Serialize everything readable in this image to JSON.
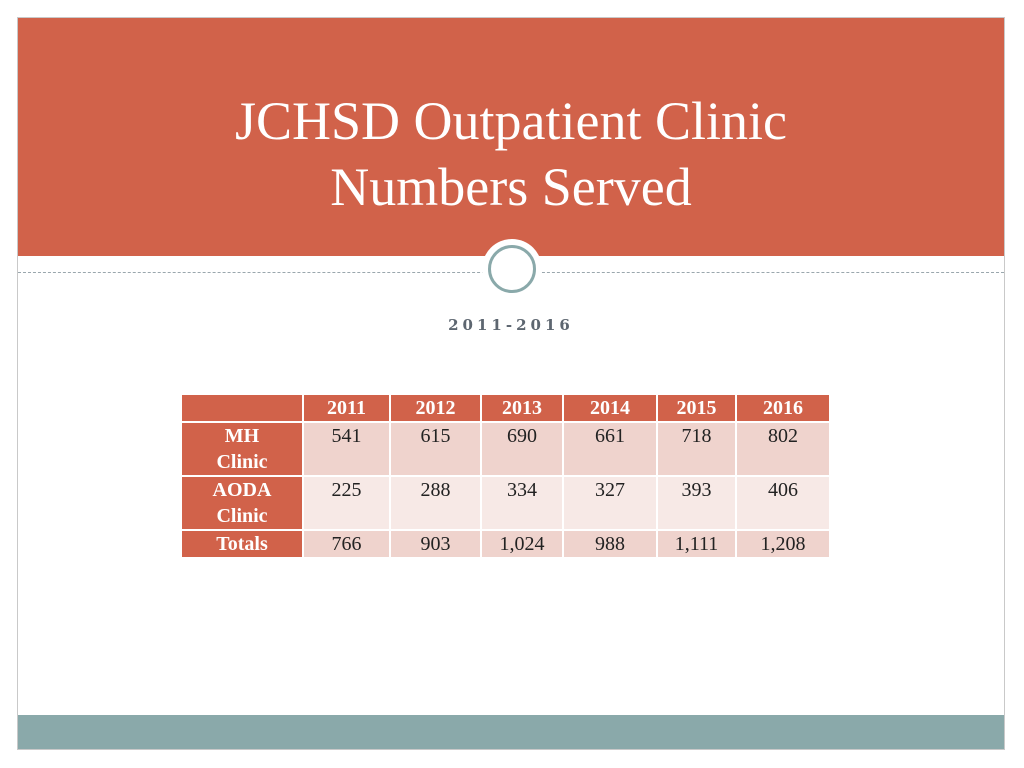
{
  "slide": {
    "title_lines": [
      "JCHSD Outpatient Clinic",
      "Numbers Served"
    ],
    "subtitle": "2011-2016"
  },
  "table": {
    "columns": [
      "2011",
      "2012",
      "2013",
      "2014",
      "2015",
      "2016"
    ],
    "rows": [
      {
        "label_lines": [
          "MH",
          "Clinic"
        ],
        "values": [
          "541",
          "615",
          "690",
          "661",
          "718",
          "802"
        ]
      },
      {
        "label_lines": [
          "AODA",
          "Clinic"
        ],
        "values": [
          "225",
          "288",
          "334",
          "327",
          "393",
          "406"
        ]
      },
      {
        "label_lines": [
          "Totals"
        ],
        "values": [
          "766",
          "903",
          "1,024",
          "988",
          "1,111",
          "1,208"
        ]
      }
    ]
  },
  "colors": {
    "accent": "#d1624a",
    "footer": "#8aa9aa",
    "row_dark": "#efd3cd",
    "row_light": "#f7e9e6"
  }
}
